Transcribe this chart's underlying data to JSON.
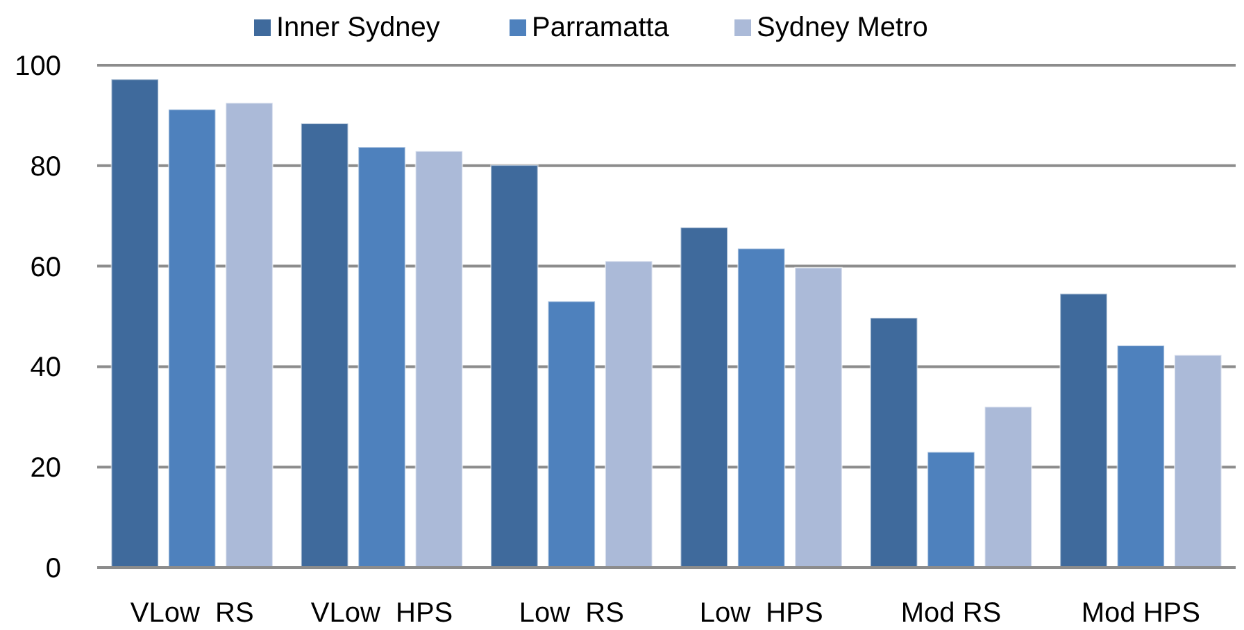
{
  "chart_data": {
    "type": "bar",
    "categories": [
      "VLow  RS",
      "VLow  HPS",
      "Low  RS",
      "Low  HPS",
      "Mod RS",
      "Mod HPS"
    ],
    "series": [
      {
        "name": "Inner Sydney",
        "color": "#3f6a9c",
        "values": [
          97.2,
          88.4,
          80.1,
          67.7,
          49.7,
          54.5
        ]
      },
      {
        "name": "Parramatta",
        "color": "#4e81bd",
        "values": [
          91.2,
          83.7,
          53,
          63.5,
          23,
          44.2
        ]
      },
      {
        "name": "Sydney Metro",
        "color": "#abbad8",
        "values": [
          92.5,
          82.9,
          61,
          59.7,
          32,
          42.3
        ]
      }
    ],
    "ylim": [
      0,
      100
    ],
    "yticks": [
      0,
      20,
      40,
      60,
      80,
      100
    ],
    "grid": "y",
    "legend": "top"
  }
}
